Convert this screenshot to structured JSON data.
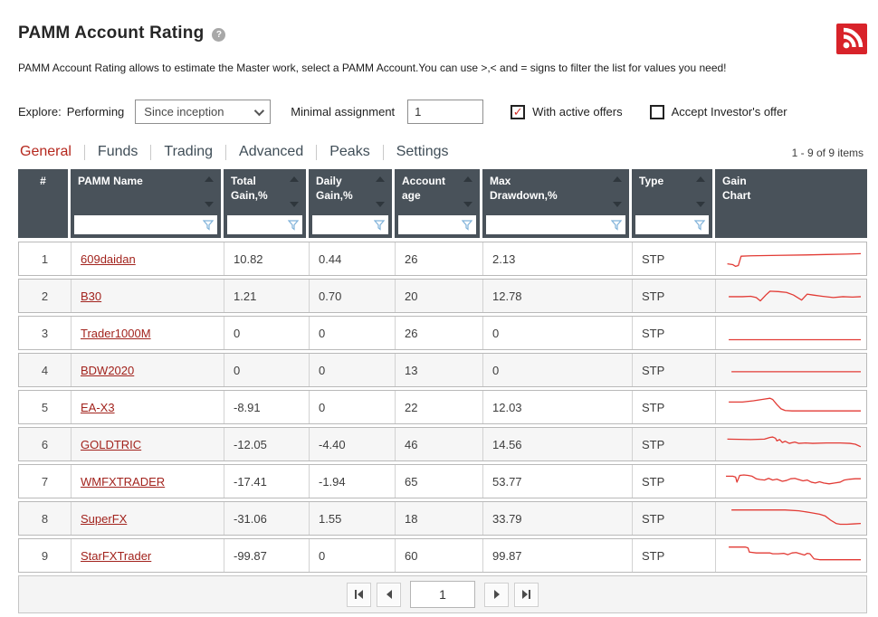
{
  "page": {
    "title": "PAMM Account Rating",
    "help_icon": "question-mark",
    "rss_icon": "rss-feed",
    "description": "PAMM Account Rating allows to estimate the Master work, select a PAMM Account.You can use >,< and = signs to filter the list for values you need!",
    "items_count": "1 - 9 of 9 items"
  },
  "colors": {
    "header_bg": "#49525a",
    "tab_active": "#b5281e",
    "link_red": "#a2231d",
    "spark_red": "#e23b35",
    "rss_red": "#d8232a",
    "funnel_blue": "#7fb2d9",
    "check_red": "#d63029"
  },
  "filters": {
    "explore_label": "Explore:",
    "performing_label": "Performing",
    "period_selected": "Since inception",
    "minimal_assignment_label": "Minimal assignment",
    "minimal_assignment_value": "1",
    "with_active_offers": {
      "label": "With active offers",
      "checked": true
    },
    "accept_investors_offer": {
      "label": "Accept Investor's offer",
      "checked": false
    }
  },
  "tabs": [
    {
      "label": "General",
      "active": true
    },
    {
      "label": "Funds",
      "active": false
    },
    {
      "label": "Trading",
      "active": false
    },
    {
      "label": "Advanced",
      "active": false
    },
    {
      "label": "Peaks",
      "active": false
    },
    {
      "label": "Settings",
      "active": false
    }
  ],
  "table": {
    "columns": [
      {
        "label": "#",
        "sortable": false,
        "filterable": false,
        "center": true
      },
      {
        "label": "PAMM Name",
        "sortable": true,
        "filterable": true
      },
      {
        "label": "Total\nGain,%",
        "sortable": true,
        "filterable": true
      },
      {
        "label": "Daily\nGain,%",
        "sortable": true,
        "filterable": true
      },
      {
        "label": "Account\nage",
        "sortable": true,
        "filterable": true
      },
      {
        "label": "Max\nDrawdown,%",
        "sortable": true,
        "filterable": true
      },
      {
        "label": "Type",
        "sortable": true,
        "filterable": true
      },
      {
        "label": "Gain\nChart",
        "sortable": false,
        "filterable": false
      }
    ],
    "rows": [
      {
        "num": "1",
        "name": "609daidan",
        "total_gain": "10.82",
        "daily_gain": "0.44",
        "account_age": "26",
        "max_drawdown": "2.13",
        "type": "STP",
        "spark": [
          [
            3,
            21
          ],
          [
            7,
            22
          ],
          [
            9,
            24
          ],
          [
            11,
            23
          ],
          [
            13,
            12
          ],
          [
            20,
            11.5
          ],
          [
            40,
            11
          ],
          [
            60,
            10.5
          ],
          [
            75,
            10
          ],
          [
            90,
            9.5
          ],
          [
            100,
            9
          ]
        ]
      },
      {
        "num": "2",
        "name": "B30",
        "total_gain": "1.21",
        "daily_gain": "0.70",
        "account_age": "20",
        "max_drawdown": "12.78",
        "type": "STP",
        "spark": [
          [
            4,
            16
          ],
          [
            14,
            16
          ],
          [
            20,
            15.5
          ],
          [
            24,
            17
          ],
          [
            27,
            21
          ],
          [
            31,
            14
          ],
          [
            34,
            9.5
          ],
          [
            40,
            10
          ],
          [
            46,
            11
          ],
          [
            51,
            14
          ],
          [
            57,
            20
          ],
          [
            61,
            13
          ],
          [
            65,
            14
          ],
          [
            72,
            15.5
          ],
          [
            80,
            17
          ],
          [
            87,
            16
          ],
          [
            94,
            16.5
          ],
          [
            100,
            16
          ]
        ]
      },
      {
        "num": "3",
        "name": "Trader1000M",
        "total_gain": "0",
        "daily_gain": "0",
        "account_age": "26",
        "max_drawdown": "0",
        "type": "STP",
        "spark": [
          [
            4,
            23
          ],
          [
            100,
            23
          ]
        ]
      },
      {
        "num": "4",
        "name": "BDW2020",
        "total_gain": "0",
        "daily_gain": "0",
        "account_age": "13",
        "max_drawdown": "0",
        "type": "STP",
        "spark": [
          [
            6,
            17
          ],
          [
            100,
            17
          ]
        ]
      },
      {
        "num": "5",
        "name": "EA-X3",
        "total_gain": "-8.91",
        "daily_gain": "0",
        "account_age": "22",
        "max_drawdown": "12.03",
        "type": "STP",
        "spark": [
          [
            4,
            9
          ],
          [
            14,
            9
          ],
          [
            22,
            7.5
          ],
          [
            30,
            5.5
          ],
          [
            34,
            4.5
          ],
          [
            36,
            6
          ],
          [
            39,
            12
          ],
          [
            42,
            17
          ],
          [
            45,
            19
          ],
          [
            50,
            19.5
          ],
          [
            100,
            19.5
          ]
        ]
      },
      {
        "num": "6",
        "name": "GOLDTRIC",
        "total_gain": "-12.05",
        "daily_gain": "-4.40",
        "account_age": "46",
        "max_drawdown": "14.56",
        "type": "STP",
        "spark": [
          [
            3,
            9
          ],
          [
            20,
            9.5
          ],
          [
            30,
            9
          ],
          [
            34,
            7
          ],
          [
            36,
            6.5
          ],
          [
            38,
            8
          ],
          [
            39,
            11
          ],
          [
            41,
            9.5
          ],
          [
            43,
            13
          ],
          [
            45,
            11.5
          ],
          [
            48,
            14
          ],
          [
            52,
            12.5
          ],
          [
            55,
            14
          ],
          [
            60,
            13.5
          ],
          [
            65,
            14
          ],
          [
            75,
            13.5
          ],
          [
            85,
            13.5
          ],
          [
            92,
            14
          ],
          [
            96,
            15
          ],
          [
            100,
            18
          ]
        ]
      },
      {
        "num": "7",
        "name": "WMFXTRADER",
        "total_gain": "-17.41",
        "daily_gain": "-1.94",
        "account_age": "65",
        "max_drawdown": "53.77",
        "type": "STP",
        "spark": [
          [
            2,
            9
          ],
          [
            7,
            9
          ],
          [
            9,
            10
          ],
          [
            10,
            16
          ],
          [
            12,
            8
          ],
          [
            15,
            7.5
          ],
          [
            18,
            8
          ],
          [
            21,
            9
          ],
          [
            24,
            12
          ],
          [
            27,
            13
          ],
          [
            30,
            13.5
          ],
          [
            33,
            11.5
          ],
          [
            36,
            13.5
          ],
          [
            39,
            12.5
          ],
          [
            43,
            15
          ],
          [
            46,
            14
          ],
          [
            49,
            12
          ],
          [
            52,
            11.5
          ],
          [
            55,
            13
          ],
          [
            58,
            14.5
          ],
          [
            61,
            13.5
          ],
          [
            64,
            16
          ],
          [
            67,
            17
          ],
          [
            70,
            15.5
          ],
          [
            73,
            17
          ],
          [
            77,
            18
          ],
          [
            81,
            17
          ],
          [
            85,
            16
          ],
          [
            88,
            13.5
          ],
          [
            92,
            12.5
          ],
          [
            96,
            12
          ],
          [
            100,
            12
          ]
        ]
      },
      {
        "num": "8",
        "name": "SuperFX",
        "total_gain": "-31.06",
        "daily_gain": "1.55",
        "account_age": "18",
        "max_drawdown": "33.79",
        "type": "STP",
        "spark": [
          [
            6,
            5
          ],
          [
            45,
            5
          ],
          [
            55,
            6
          ],
          [
            63,
            8
          ],
          [
            70,
            10
          ],
          [
            74,
            12
          ],
          [
            78,
            17
          ],
          [
            82,
            21
          ],
          [
            85,
            22
          ],
          [
            90,
            22
          ],
          [
            95,
            21.5
          ],
          [
            100,
            21
          ]
        ]
      },
      {
        "num": "9",
        "name": "StarFXTrader",
        "total_gain": "-99.87",
        "daily_gain": "0",
        "account_age": "60",
        "max_drawdown": "99.87",
        "type": "STP",
        "spark": [
          [
            4,
            5
          ],
          [
            16,
            5
          ],
          [
            18,
            6
          ],
          [
            19,
            11
          ],
          [
            24,
            12
          ],
          [
            30,
            12
          ],
          [
            34,
            12
          ],
          [
            36,
            13
          ],
          [
            40,
            13
          ],
          [
            44,
            12.5
          ],
          [
            47,
            14
          ],
          [
            50,
            12
          ],
          [
            53,
            11.5
          ],
          [
            56,
            13
          ],
          [
            59,
            14.5
          ],
          [
            61,
            12.5
          ],
          [
            63,
            13
          ],
          [
            66,
            19
          ],
          [
            70,
            20
          ],
          [
            100,
            20
          ]
        ]
      }
    ]
  },
  "pagination": {
    "page_value": "1",
    "buttons": [
      "first-page",
      "previous-page",
      "next-page",
      "last-page"
    ]
  }
}
